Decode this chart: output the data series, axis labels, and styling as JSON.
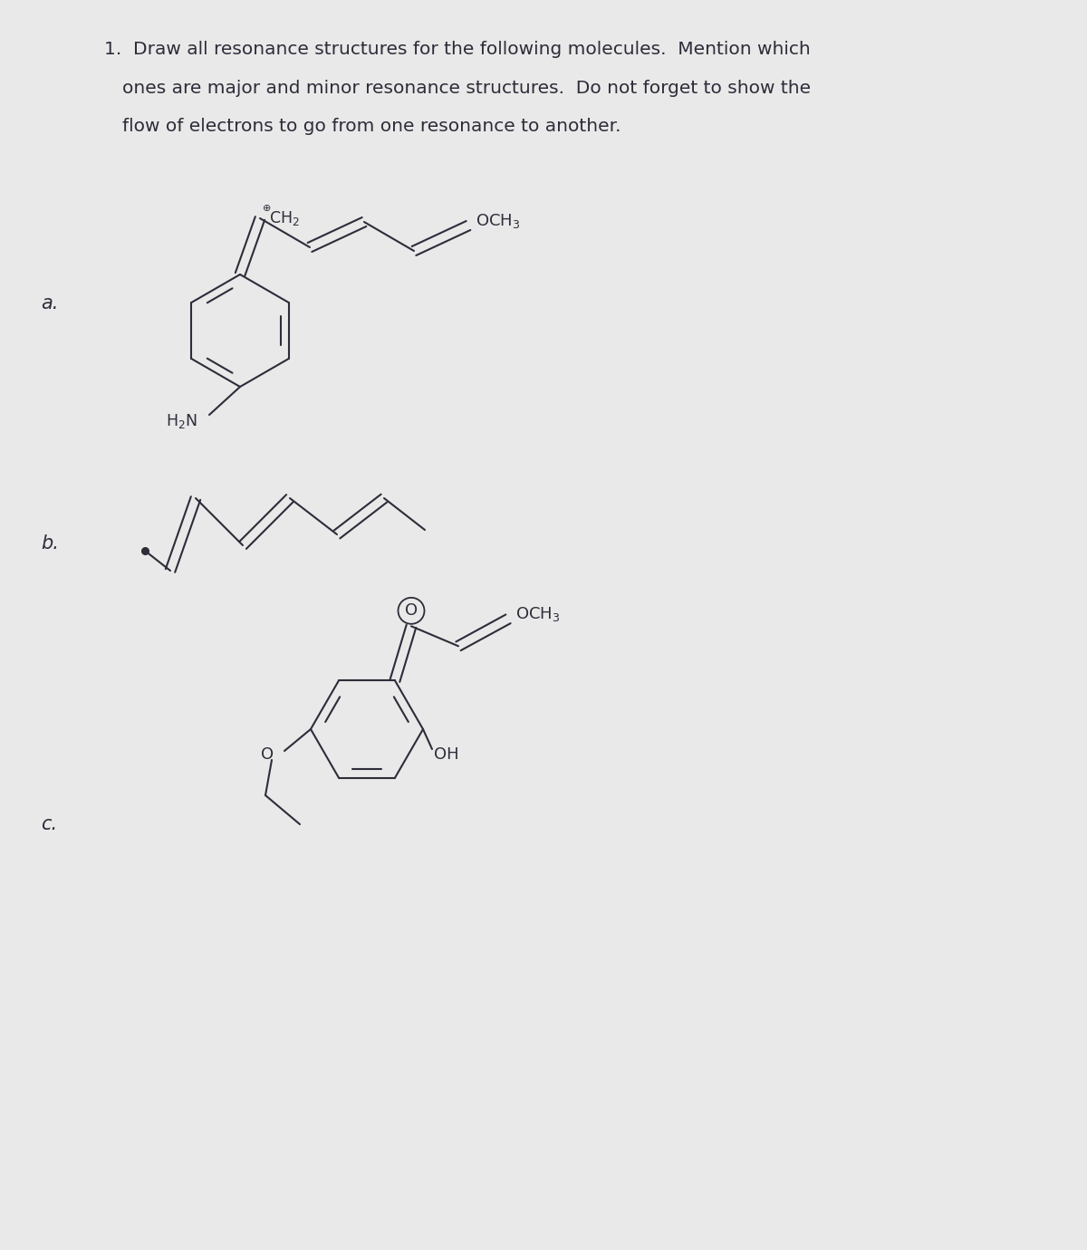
{
  "background_color": "#e9e9e9",
  "paper_color": "#ececec",
  "text_color": "#2d2d3a",
  "title_line1": "1.  Draw all resonance structures for the following molecules.  Mention which",
  "title_line2": "ones are major and minor resonance structures.  Do not forget to show the",
  "title_line3": "flow of electrons to go from one resonance to another.",
  "label_a": "a.",
  "label_b": "b.",
  "label_c": "c.",
  "font_size_title": 14.5,
  "font_size_label": 15,
  "font_size_chem": 12.5
}
